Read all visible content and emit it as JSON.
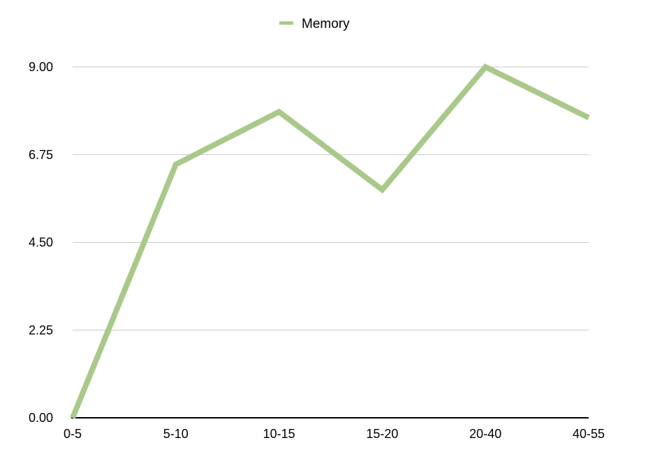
{
  "chart_data": {
    "type": "line",
    "categories": [
      "0-5",
      "5-10",
      "10-15",
      "15-20",
      "20-40",
      "40-55"
    ],
    "series": [
      {
        "name": "Memory",
        "values": [
          0.0,
          6.5,
          7.85,
          5.85,
          9.0,
          7.7
        ],
        "color": "#a9c98b"
      }
    ],
    "yticks": [
      "0.00",
      "2.25",
      "4.50",
      "6.75",
      "9.00"
    ],
    "ylim": [
      0,
      9
    ],
    "grid": true,
    "legend_position": "top-center"
  }
}
